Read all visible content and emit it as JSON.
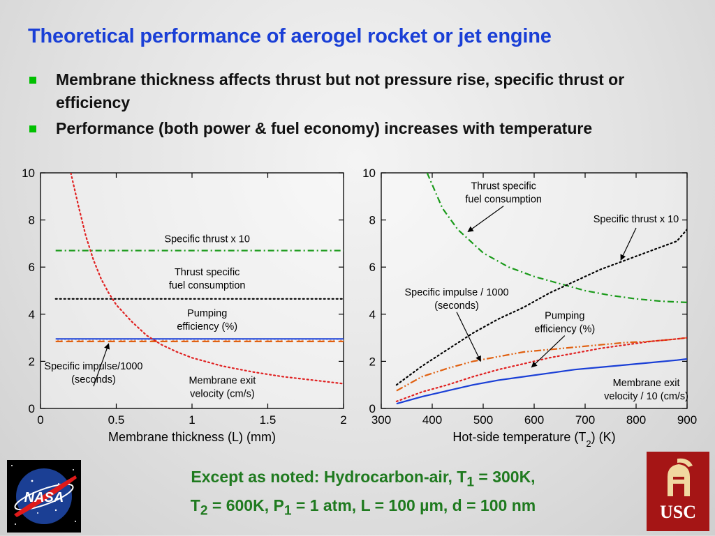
{
  "slide": {
    "title": "Theoretical performance of aerogel rocket or jet engine",
    "bullets": [
      "Membrane thickness affects thrust but not pressure rise, specific thrust or efficiency",
      "Performance (both power & fuel economy) increases with temperature"
    ],
    "footer_line1_pre": "Except as noted:  Hydrocarbon-air, T",
    "footer_line1_sub": "1",
    "footer_line1_post": " = 300K,",
    "footer_line2_a": "T",
    "footer_line2_sub_a": "2",
    "footer_line2_b": " = 600K, P",
    "footer_line2_sub_b": "1",
    "footer_line2_c": " = 1 atm, L = 100 µm, d = 100 nm",
    "logos": {
      "left_text": "NASA",
      "right_text": "USC"
    }
  },
  "colors": {
    "title": "#1a3fd6",
    "bullet": "#00c000",
    "footer": "#1f7a1f",
    "specific_thrust": "#1a9a1a",
    "tsfc": "#000000",
    "pumping": "#e06010",
    "impulse": "#e02020",
    "velocity": "#1a3fd6",
    "thickness_curve": "#e02020"
  },
  "chart_data": [
    {
      "type": "line",
      "xlabel": "Membrane thickness (L) (mm)",
      "ylabel": "",
      "xlim": [
        0,
        2
      ],
      "ylim": [
        0,
        10
      ],
      "xticks": [
        0,
        0.5,
        1,
        1.5,
        2
      ],
      "xtick_labels": [
        "0",
        "0.5",
        "1",
        "1.5",
        "2"
      ],
      "yticks": [
        0,
        2,
        4,
        6,
        8,
        10
      ],
      "ytick_labels": [
        "0",
        "2",
        "4",
        "6",
        "8",
        "10"
      ],
      "grid": false,
      "series": [
        {
          "key": "specific_thrust",
          "style": "dashdot",
          "x": [
            0.1,
            2.0
          ],
          "y": [
            6.7,
            6.7
          ]
        },
        {
          "key": "tsfc",
          "style": "dotted",
          "x": [
            0.1,
            2.0
          ],
          "y": [
            4.65,
            4.65
          ]
        },
        {
          "key": "velocity",
          "style": "solid",
          "x": [
            0.1,
            2.0
          ],
          "y": [
            2.95,
            2.95
          ]
        },
        {
          "key": "pumping",
          "style": "dashed",
          "x": [
            0.1,
            2.0
          ],
          "y": [
            2.85,
            2.85
          ]
        },
        {
          "key": "impulse_flat",
          "style": "dotted-light",
          "x": [
            0.1,
            2.0
          ],
          "y": [
            2.9,
            2.9
          ]
        },
        {
          "key": "thickness_curve",
          "style": "dotted",
          "x": [
            0.2,
            0.25,
            0.3,
            0.35,
            0.4,
            0.45,
            0.5,
            0.6,
            0.7,
            0.8,
            0.9,
            1.0,
            1.2,
            1.4,
            1.6,
            1.8,
            2.0
          ],
          "y": [
            10,
            8.6,
            7.3,
            6.3,
            5.5,
            4.9,
            4.4,
            3.7,
            3.1,
            2.7,
            2.4,
            2.15,
            1.8,
            1.55,
            1.35,
            1.2,
            1.05
          ]
        }
      ],
      "annotations": [
        {
          "text": [
            "Specific thrust x 10"
          ],
          "x": 1.1,
          "y": 7.05
        },
        {
          "text": [
            "Thrust specific",
            "fuel consumption"
          ],
          "x": 1.1,
          "y": 5.65
        },
        {
          "text": [
            "Pumping",
            "efficiency (%)"
          ],
          "x": 1.1,
          "y": 3.9
        },
        {
          "text": [
            "Specific impulse/1000",
            "(seconds)"
          ],
          "x": 0.35,
          "y": 1.65,
          "arrow_to": [
            0.45,
            2.75
          ]
        },
        {
          "text": [
            "Membrane exit",
            "velocity (cm/s)"
          ],
          "x": 1.2,
          "y": 1.05
        }
      ]
    },
    {
      "type": "line",
      "xlabel_pre": "Hot-side temperature (T",
      "xlabel_sub": "2",
      "xlabel_post": ") (K)",
      "ylabel": "",
      "xlim": [
        300,
        900
      ],
      "ylim": [
        0,
        10
      ],
      "xticks": [
        300,
        400,
        500,
        600,
        700,
        800,
        900
      ],
      "xtick_labels": [
        "300",
        "400",
        "500",
        "600",
        "700",
        "800",
        "900"
      ],
      "yticks": [
        0,
        2,
        4,
        6,
        8,
        10
      ],
      "ytick_labels": [
        "0",
        "2",
        "4",
        "6",
        "8",
        "10"
      ],
      "grid": false,
      "series": [
        {
          "key": "tsfc_temp",
          "style": "dashdot",
          "color": "specific_thrust",
          "x": [
            390,
            420,
            450,
            500,
            550,
            600,
            650,
            700,
            750,
            800,
            850,
            900
          ],
          "y": [
            10,
            8.5,
            7.6,
            6.6,
            6.0,
            5.6,
            5.3,
            5.0,
            4.8,
            4.65,
            4.55,
            4.5
          ]
        },
        {
          "key": "thrust_temp",
          "style": "dotted",
          "color": "tsfc",
          "x": [
            330,
            380,
            430,
            480,
            530,
            580,
            630,
            680,
            730,
            780,
            830,
            880,
            900
          ],
          "y": [
            1.0,
            1.8,
            2.5,
            3.2,
            3.8,
            4.3,
            4.9,
            5.4,
            5.9,
            6.3,
            6.7,
            7.1,
            7.6
          ]
        },
        {
          "key": "pumping_temp",
          "style": "dashed-dotdot",
          "color": "pumping",
          "x": [
            330,
            380,
            430,
            480,
            530,
            580,
            630,
            680,
            730,
            780,
            830,
            880,
            900
          ],
          "y": [
            0.75,
            1.35,
            1.7,
            2.0,
            2.2,
            2.4,
            2.5,
            2.6,
            2.7,
            2.8,
            2.85,
            2.95,
            3.0
          ]
        },
        {
          "key": "impulse_temp",
          "style": "dotted",
          "color": "impulse",
          "x": [
            330,
            380,
            430,
            480,
            530,
            580,
            630,
            680,
            730,
            780,
            830,
            880,
            900
          ],
          "y": [
            0.3,
            0.7,
            1.0,
            1.35,
            1.65,
            1.9,
            2.15,
            2.35,
            2.55,
            2.7,
            2.85,
            2.95,
            3.0
          ]
        },
        {
          "key": "velocity_temp",
          "style": "solid",
          "color": "velocity",
          "x": [
            330,
            380,
            430,
            480,
            530,
            580,
            630,
            680,
            730,
            780,
            830,
            880,
            900
          ],
          "y": [
            0.2,
            0.5,
            0.75,
            1.0,
            1.2,
            1.35,
            1.5,
            1.65,
            1.75,
            1.85,
            1.95,
            2.05,
            2.1
          ]
        }
      ],
      "annotations": [
        {
          "text": [
            "Thrust specific",
            "fuel consumption"
          ],
          "x": 540,
          "y": 9.3,
          "arrow_to": [
            470,
            7.5
          ]
        },
        {
          "text": [
            "Specific thrust x 10"
          ],
          "x": 800,
          "y": 7.9,
          "arrow_to": [
            770,
            6.3
          ]
        },
        {
          "text": [
            "Specific impulse / 1000",
            "(seconds)"
          ],
          "x": 448,
          "y": 4.8,
          "arrow_to": [
            495,
            2.0
          ]
        },
        {
          "text": [
            "Pumping",
            "efficiency (%)"
          ],
          "x": 660,
          "y": 3.8,
          "arrow_to": [
            595,
            1.75
          ]
        },
        {
          "text": [
            "Membrane exit",
            "velocity / 10 (cm/s)"
          ],
          "x": 820,
          "y": 0.95
        }
      ]
    }
  ]
}
